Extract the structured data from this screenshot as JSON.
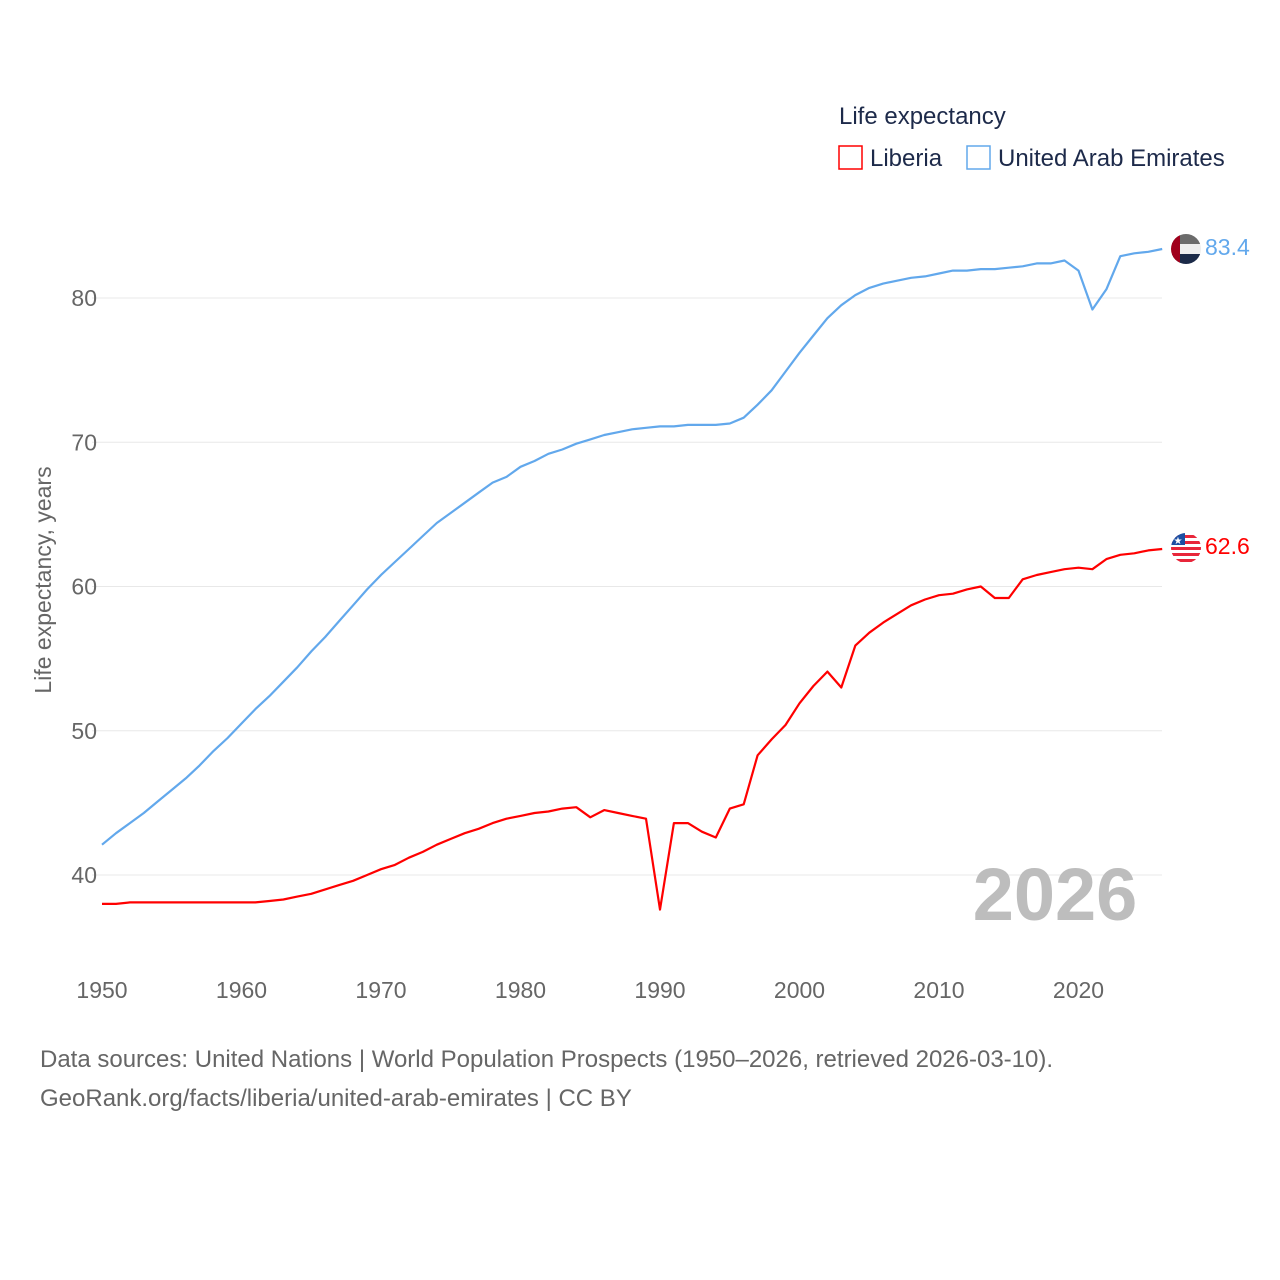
{
  "chart_data": {
    "type": "line",
    "title": "Life expectancy",
    "ylabel": "Life expectancy, years",
    "xlabel": "",
    "ylim": [
      35.5,
      85
    ],
    "xlim": [
      1950,
      2026
    ],
    "grid": true,
    "legend_placement": "top-right",
    "x_ticks": [
      1950,
      1960,
      1970,
      1980,
      1990,
      2000,
      2010,
      2020
    ],
    "y_ticks": [
      40,
      50,
      60,
      70,
      80
    ],
    "current_year_label": "2026",
    "x": [
      1950,
      1951,
      1952,
      1953,
      1954,
      1955,
      1956,
      1957,
      1958,
      1959,
      1960,
      1961,
      1962,
      1963,
      1964,
      1965,
      1966,
      1967,
      1968,
      1969,
      1970,
      1971,
      1972,
      1973,
      1974,
      1975,
      1976,
      1977,
      1978,
      1979,
      1980,
      1981,
      1982,
      1983,
      1984,
      1985,
      1986,
      1987,
      1988,
      1989,
      1990,
      1991,
      1992,
      1993,
      1994,
      1995,
      1996,
      1997,
      1998,
      1999,
      2000,
      2001,
      2002,
      2003,
      2004,
      2005,
      2006,
      2007,
      2008,
      2009,
      2010,
      2011,
      2012,
      2013,
      2014,
      2015,
      2016,
      2017,
      2018,
      2019,
      2020,
      2021,
      2022,
      2023,
      2024,
      2025,
      2026
    ],
    "series": [
      {
        "name": "Liberia",
        "color": "#ff0000",
        "end_label": "62.6",
        "values": [
          38.0,
          38.0,
          38.1,
          38.1,
          38.1,
          38.1,
          38.1,
          38.1,
          38.1,
          38.1,
          38.1,
          38.1,
          38.2,
          38.3,
          38.5,
          38.7,
          39.0,
          39.3,
          39.6,
          40.0,
          40.4,
          40.7,
          41.2,
          41.6,
          42.1,
          42.5,
          42.9,
          43.2,
          43.6,
          43.9,
          44.1,
          44.3,
          44.4,
          44.6,
          44.7,
          44.0,
          44.5,
          44.3,
          44.1,
          43.9,
          37.6,
          43.6,
          43.6,
          43.0,
          42.6,
          44.6,
          44.9,
          48.3,
          49.4,
          50.4,
          51.9,
          53.1,
          54.1,
          53.0,
          55.9,
          56.8,
          57.5,
          58.1,
          58.7,
          59.1,
          59.4,
          59.5,
          59.8,
          60.0,
          59.2,
          59.2,
          60.5,
          60.8,
          61.0,
          61.2,
          61.3,
          61.2,
          61.9,
          62.2,
          62.3,
          62.5,
          62.6
        ]
      },
      {
        "name": "United Arab Emirates",
        "color": "#62a8ec",
        "end_label": "83.4",
        "values": [
          42.1,
          42.9,
          43.6,
          44.3,
          45.1,
          45.9,
          46.7,
          47.6,
          48.6,
          49.5,
          50.5,
          51.5,
          52.4,
          53.4,
          54.4,
          55.5,
          56.5,
          57.6,
          58.7,
          59.8,
          60.8,
          61.7,
          62.6,
          63.5,
          64.4,
          65.1,
          65.8,
          66.5,
          67.2,
          67.6,
          68.3,
          68.7,
          69.2,
          69.5,
          69.9,
          70.2,
          70.5,
          70.7,
          70.9,
          71.0,
          71.1,
          71.1,
          71.2,
          71.2,
          71.2,
          71.3,
          71.7,
          72.6,
          73.6,
          74.9,
          76.2,
          77.4,
          78.6,
          79.5,
          80.2,
          80.7,
          81.0,
          81.2,
          81.4,
          81.5,
          81.7,
          81.9,
          81.9,
          82.0,
          82.0,
          82.1,
          82.2,
          82.4,
          82.4,
          82.6,
          81.9,
          79.2,
          80.6,
          82.9,
          83.1,
          83.2,
          83.4
        ]
      }
    ]
  },
  "footer": {
    "sources": "Data sources: United Nations | World Population Prospects (1950–2026, retrieved 2026-03-10).",
    "credit": "GeoRank.org/facts/liberia/united-arab-emirates | CC BY"
  }
}
